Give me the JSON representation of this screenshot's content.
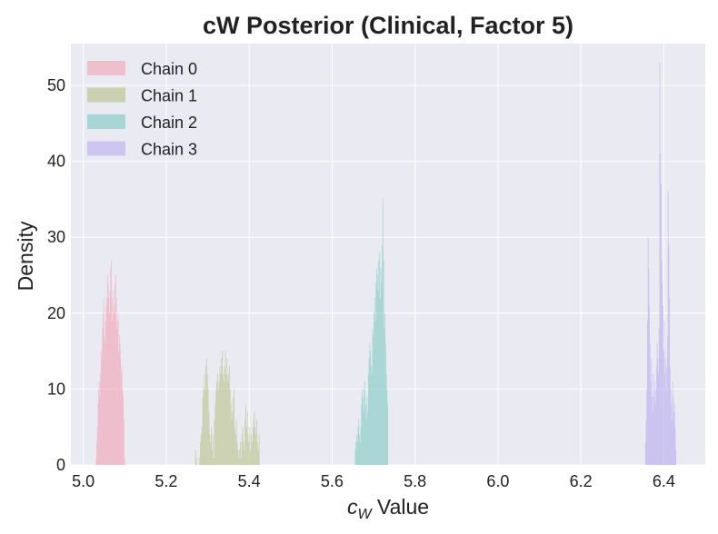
{
  "chart_data": {
    "type": "histogram",
    "title": "cW Posterior (Clinical, Factor 5)",
    "xlabel_main": "c",
    "xlabel_sub": "W",
    "xlabel_rest": " Value",
    "ylabel": "Density",
    "xlim": [
      4.97,
      6.5
    ],
    "ylim": [
      0,
      55.5
    ],
    "xticks": [
      5.0,
      5.2,
      5.4,
      5.6,
      5.8,
      6.0,
      6.2,
      6.4
    ],
    "xtick_labels": [
      "5.0",
      "5.2",
      "5.4",
      "5.6",
      "5.8",
      "6.0",
      "6.2",
      "6.4"
    ],
    "yticks": [
      0,
      10,
      20,
      30,
      40,
      50
    ],
    "ytick_labels": [
      "0",
      "10",
      "20",
      "30",
      "40",
      "50"
    ],
    "grid": true,
    "legend_position": "top-left",
    "series": [
      {
        "name": "Chain 0",
        "color": "#f0a3b5",
        "x_range": [
          5.03,
          5.1
        ],
        "values": [
          1,
          3,
          5,
          8,
          10,
          11,
          9,
          12,
          15,
          14,
          18,
          20,
          22,
          17,
          16,
          19,
          21,
          22,
          25,
          24,
          22,
          20,
          23,
          26,
          27,
          22,
          19,
          23,
          20,
          21,
          24,
          25,
          22,
          18,
          19,
          20,
          15,
          17,
          16,
          14,
          12,
          13,
          10,
          9,
          6,
          1
        ]
      },
      {
        "name": "Chain 1",
        "color": "#b5bf84",
        "x_range": [
          5.27,
          5.425
        ],
        "values": [
          2,
          1,
          0,
          0,
          0,
          1,
          3,
          4,
          5,
          9,
          10,
          12,
          10,
          13,
          14,
          12,
          10,
          7,
          4,
          3,
          5,
          2,
          4,
          1,
          6,
          8,
          10,
          11,
          12,
          10,
          11,
          13,
          12,
          14,
          15,
          12,
          11,
          13,
          15,
          12,
          14,
          11,
          12,
          13,
          10,
          8,
          6,
          7,
          9,
          10,
          5,
          4,
          6,
          3,
          2,
          1,
          2,
          3,
          1,
          4,
          5,
          3,
          2,
          6,
          8,
          5,
          7,
          4,
          3,
          5,
          2,
          4,
          3,
          5,
          6,
          7,
          5,
          4,
          6,
          3,
          2,
          4
        ]
      },
      {
        "name": "Chain 2",
        "color": "#7cc8c2",
        "x_range": [
          5.655,
          5.735
        ],
        "values": [
          2,
          3,
          4,
          3,
          5,
          6,
          4,
          3,
          5,
          8,
          10,
          9,
          7,
          10,
          11,
          8,
          6,
          9,
          7,
          12,
          14,
          16,
          15,
          13,
          12,
          18,
          17,
          20,
          22,
          19,
          24,
          26,
          25,
          23,
          27,
          28,
          22,
          26,
          24,
          29,
          35,
          27,
          18,
          20,
          16,
          12,
          10,
          8
        ]
      },
      {
        "name": "Chain 3",
        "color": "#b9abee",
        "x_range": [
          6.355,
          6.43
        ],
        "values": [
          3,
          6,
          10,
          19,
          30,
          26,
          21,
          16,
          11,
          14,
          9,
          7,
          12,
          9,
          11,
          8,
          10,
          13,
          16,
          14,
          12,
          18,
          53,
          41,
          37,
          27,
          24,
          21,
          15,
          19,
          12,
          14,
          10,
          13,
          17,
          36,
          29,
          22,
          13,
          10,
          8,
          6,
          11,
          9,
          7,
          8,
          5,
          2
        ]
      }
    ]
  }
}
